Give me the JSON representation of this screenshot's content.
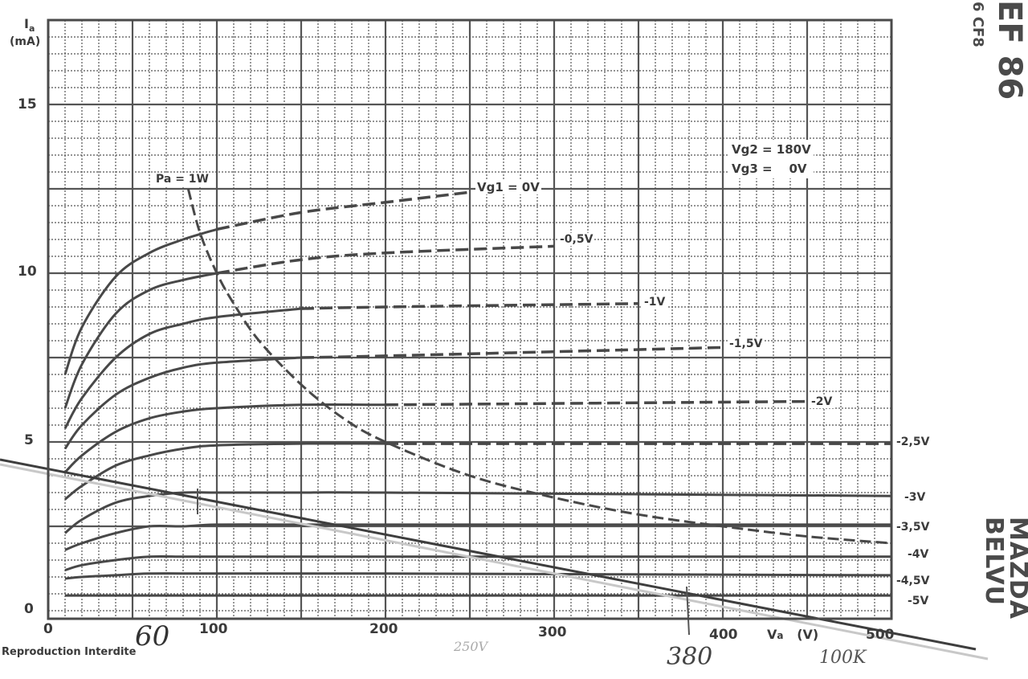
{
  "header": {
    "tube_type": "EF 86",
    "tube_equivalent": "6 CF8",
    "conditions": [
      "Vg2 = 180V",
      "Vg3 =    0V"
    ]
  },
  "brand": {
    "line1": "MAZDA",
    "line2": "BELVU"
  },
  "footer": {
    "notice": "Reproduction Interdite"
  },
  "annotations": {
    "handwritten": [
      "60",
      "250V",
      "380",
      "100K"
    ],
    "power_curve_label": "Pa = 1W"
  },
  "chart_data": {
    "type": "line",
    "title": "EF 86 / 6 CF8 anode characteristics (Ia vs Va)",
    "subtitle": "Vg2 = 180V, Vg3 = 0V",
    "xlabel": "Va (V)",
    "ylabel": "Ia (mA)",
    "xlim": [
      0,
      500
    ],
    "ylim": [
      0,
      17.5
    ],
    "x_ticks": [
      0,
      100,
      200,
      300,
      400,
      500
    ],
    "y_ticks": [
      0,
      5,
      10,
      15
    ],
    "x_tick_labels": [
      "0",
      "100",
      "200",
      "300",
      "400",
      "500"
    ],
    "y_tick_labels": [
      "0",
      "5",
      "10",
      "15"
    ],
    "grid": true,
    "legend_position": "curve-end labels",
    "series": [
      {
        "name": "Vg1 = 0V",
        "label": "Vg1 = 0V",
        "x": [
          10,
          20,
          40,
          60,
          80,
          100,
          150,
          200,
          250
        ],
        "values": [
          7.0,
          8.4,
          9.9,
          10.6,
          11.0,
          11.3,
          11.8,
          12.1,
          12.4
        ]
      },
      {
        "name": "-0,5V",
        "label": "-0,5V",
        "x": [
          10,
          20,
          40,
          60,
          80,
          100,
          150,
          200,
          300
        ],
        "values": [
          6.0,
          7.3,
          8.8,
          9.5,
          9.8,
          10.0,
          10.4,
          10.6,
          10.8
        ]
      },
      {
        "name": "-1V",
        "label": "-1V",
        "x": [
          10,
          20,
          40,
          60,
          80,
          100,
          150,
          200,
          350
        ],
        "values": [
          5.4,
          6.3,
          7.5,
          8.2,
          8.5,
          8.7,
          8.95,
          9.0,
          9.1
        ]
      },
      {
        "name": "-1,5V",
        "label": "-1,5V",
        "x": [
          10,
          20,
          40,
          60,
          80,
          100,
          150,
          200,
          400
        ],
        "values": [
          4.8,
          5.5,
          6.4,
          6.9,
          7.2,
          7.35,
          7.5,
          7.55,
          7.8
        ]
      },
      {
        "name": "-2V",
        "label": "-2V",
        "x": [
          10,
          20,
          40,
          60,
          80,
          100,
          150,
          200,
          450
        ],
        "values": [
          4.1,
          4.6,
          5.3,
          5.7,
          5.9,
          6.0,
          6.1,
          6.1,
          6.2
        ]
      },
      {
        "name": "-2,5V",
        "label": "-2,5V",
        "x": [
          10,
          20,
          40,
          60,
          80,
          100,
          150,
          200,
          500
        ],
        "values": [
          3.3,
          3.7,
          4.3,
          4.6,
          4.8,
          4.9,
          4.95,
          4.95,
          4.95
        ]
      },
      {
        "name": "-3V",
        "label": "-3V",
        "x": [
          10,
          20,
          40,
          60,
          80,
          100,
          150,
          200,
          500
        ],
        "values": [
          2.3,
          2.7,
          3.2,
          3.4,
          3.5,
          3.5,
          3.5,
          3.5,
          3.4
        ]
      },
      {
        "name": "-3,5V",
        "label": "-3,5V",
        "x": [
          10,
          20,
          40,
          60,
          80,
          100,
          150,
          200,
          500
        ],
        "values": [
          1.8,
          2.0,
          2.3,
          2.5,
          2.5,
          2.55,
          2.55,
          2.55,
          2.55
        ]
      },
      {
        "name": "-4V",
        "label": "-4V",
        "x": [
          10,
          20,
          40,
          60,
          80,
          100,
          150,
          200,
          500
        ],
        "values": [
          1.2,
          1.35,
          1.5,
          1.6,
          1.6,
          1.6,
          1.6,
          1.6,
          1.6
        ]
      },
      {
        "name": "-4,5V",
        "label": "-4,5V",
        "x": [
          10,
          20,
          40,
          60,
          100,
          200,
          500
        ],
        "values": [
          0.95,
          1.0,
          1.05,
          1.1,
          1.1,
          1.1,
          1.05
        ]
      },
      {
        "name": "-5V",
        "label": "-5V",
        "x": [
          10,
          100,
          200,
          300,
          500
        ],
        "values": [
          0.45,
          0.45,
          0.45,
          0.45,
          0.45
        ]
      }
    ],
    "power_limit": {
      "name": "Pa = 1W",
      "x": [
        83,
        90,
        100,
        110,
        125,
        150,
        175,
        200,
        250,
        300,
        350,
        400,
        450,
        500
      ],
      "values": [
        12.5,
        11.2,
        10.0,
        9.1,
        8.0,
        6.7,
        5.7,
        5.0,
        4.0,
        3.35,
        2.85,
        2.5,
        2.2,
        2.0
      ]
    },
    "load_line": {
      "name": "100K load line (handwritten)",
      "x": [
        0,
        60,
        250,
        380,
        500
      ],
      "values": [
        4.0,
        3.5,
        1.6,
        0.35,
        -0.8
      ]
    },
    "operating_marks": {
      "Va_idle": 60,
      "Va_supply_note": "250V",
      "Va_cutoff": 380,
      "load": "100K"
    }
  }
}
